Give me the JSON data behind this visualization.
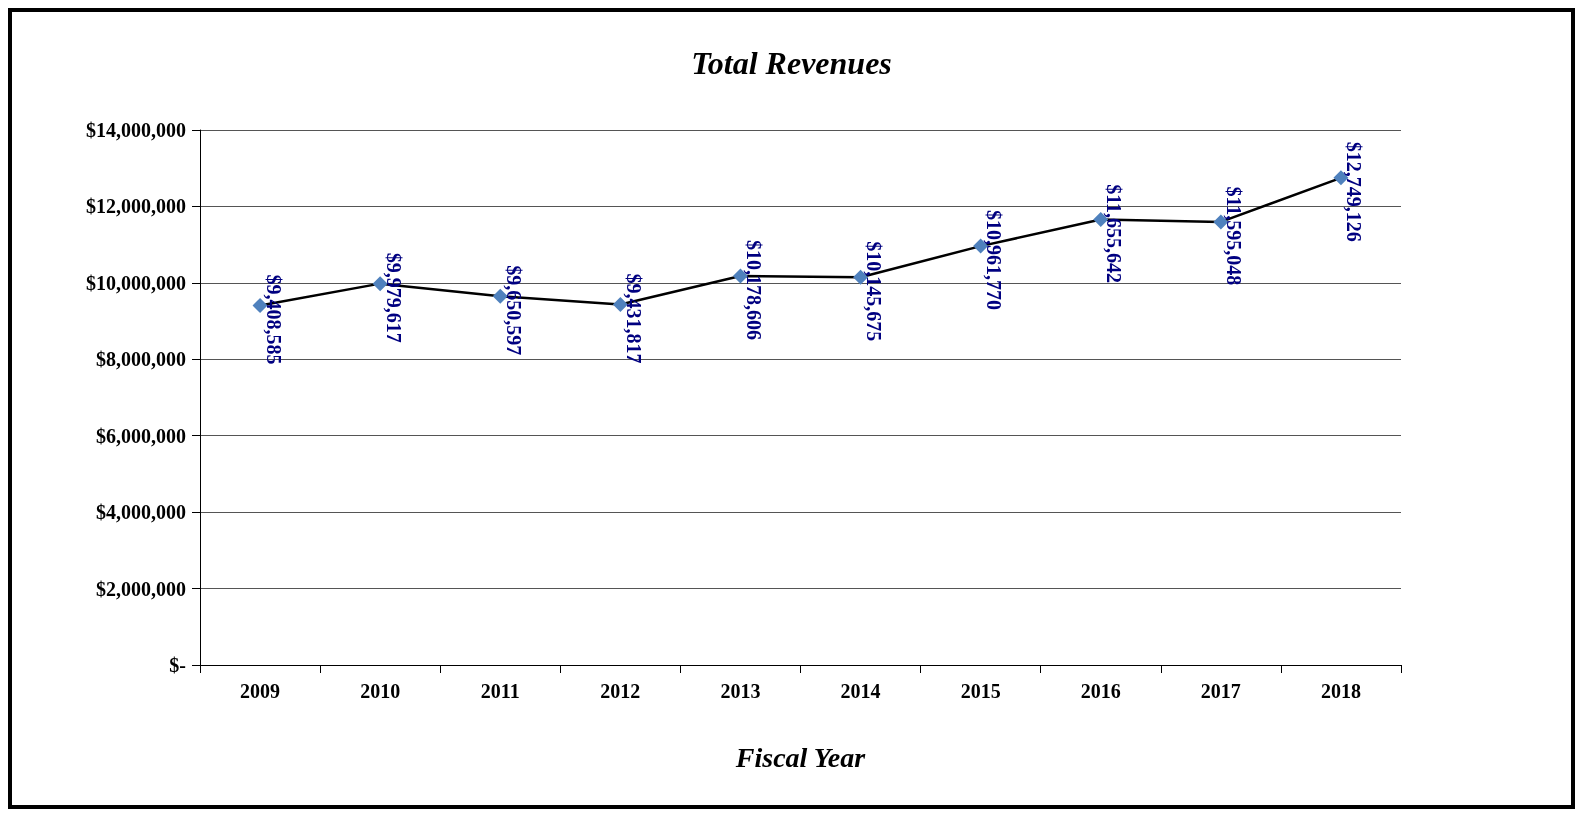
{
  "chart_data": {
    "type": "line",
    "title": "Total Revenues",
    "xlabel": "Fiscal Year",
    "categories": [
      "2009",
      "2010",
      "2011",
      "2012",
      "2013",
      "2014",
      "2015",
      "2016",
      "2017",
      "2018"
    ],
    "series": [
      {
        "color": "#4f81bd",
        "values": [
          9408585,
          9979617,
          9650597,
          9431817,
          10178606,
          10145675,
          10961770,
          11655642,
          11595048,
          12749126
        ],
        "value_labels": [
          "$9,408,585",
          "$9,979,617",
          "$9,650,597",
          "$9,431,817",
          "$10,178,606",
          "$10,145,675",
          "$10,961,770",
          "$11,655,642",
          "$11,595,048",
          "$12,749,126"
        ]
      }
    ],
    "ylim": [
      0,
      14000000
    ],
    "yticks": [
      {
        "value": 0,
        "label": "$-"
      },
      {
        "value": 2000000,
        "label": "$2,000,000"
      },
      {
        "value": 4000000,
        "label": "$4,000,000"
      },
      {
        "value": 6000000,
        "label": "$6,000,000"
      },
      {
        "value": 8000000,
        "label": "$8,000,000"
      },
      {
        "value": 10000000,
        "label": "$10,000,000"
      },
      {
        "value": 12000000,
        "label": "$12,000,000"
      },
      {
        "value": 14000000,
        "label": "$14,000,000"
      }
    ],
    "grid": "y",
    "marker": "diamond",
    "line_style": "solid"
  }
}
